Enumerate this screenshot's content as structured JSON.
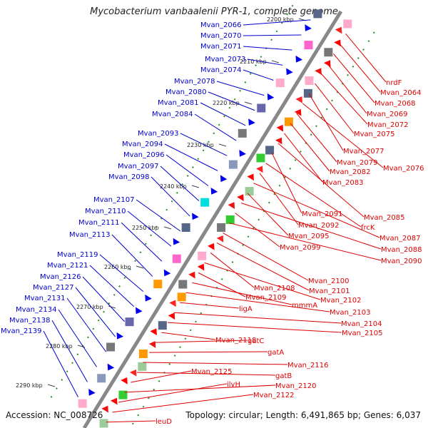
{
  "title": "Mycobacterium vanbaalenii PYR-1, complete genome",
  "footer": {
    "accession": "Accession: NC_008726",
    "summary": "Topology: circular; Length: 6,491,865 bp; Genes: 6,037"
  },
  "colors": {
    "forward_label": "#0000cc",
    "reverse_label": "#dd0000",
    "backbone": "#888888",
    "tick": "#2a8a2a"
  },
  "ticks": [
    "2200 kbp",
    "2210 kbp",
    "2220 kbp",
    "2230 kbp",
    "2240 kbp",
    "2250 kbp",
    "2260 kbp",
    "2270 kbp",
    "2280 kbp",
    "2290 kbp"
  ],
  "left_labels": [
    "Mvan_2066",
    "Mvan_2070",
    "Mvan_2071",
    "Mvan_2073",
    "Mvan_2074",
    "Mvan_2078",
    "Mvan_2080",
    "Mvan_2081",
    "Mvan_2084",
    "Mvan_2093",
    "Mvan_2094",
    "Mvan_2096",
    "Mvan_2097",
    "Mvan_2098",
    "Mvan_2107",
    "Mvan_2110",
    "Mvan_2111",
    "Mvan_2113",
    "Mvan_2119",
    "Mvan_2121",
    "Mvan_2126",
    "Mvan_2127",
    "Mvan_2131",
    "Mvan_2134",
    "Mvan_2138",
    "Mvan_2139"
  ],
  "right_labels": [
    "nrdF",
    "Mvan_2064",
    "Mvan_2068",
    "Mvan_2069",
    "Mvan_2072",
    "Mvan_2075",
    "Mvan_2077",
    "Mvan_2076",
    "Mvan_2079",
    "Mvan_2082",
    "Mvan_2083",
    "Mvan_2085",
    "Mvan_2091",
    "frcK",
    "Mvan_2092",
    "Mvan_2087",
    "Mvan_2095",
    "Mvan_2088",
    "Mvan_2099",
    "Mvan_2090",
    "Mvan_2100",
    "Mvan_2101",
    "Mvan_2108",
    "Mvan_2102",
    "Mvan_2109",
    "mmmA",
    "Mvan_2103",
    "ligA",
    "Mvan_2104",
    "Mvan_2105",
    "Mvan_2118",
    "gatC",
    "gatA",
    "Mvan_2116",
    "gatB",
    "Mvan_2125",
    "Mvan_2120",
    "ilvH",
    "Mvan_2122",
    "leuD"
  ]
}
